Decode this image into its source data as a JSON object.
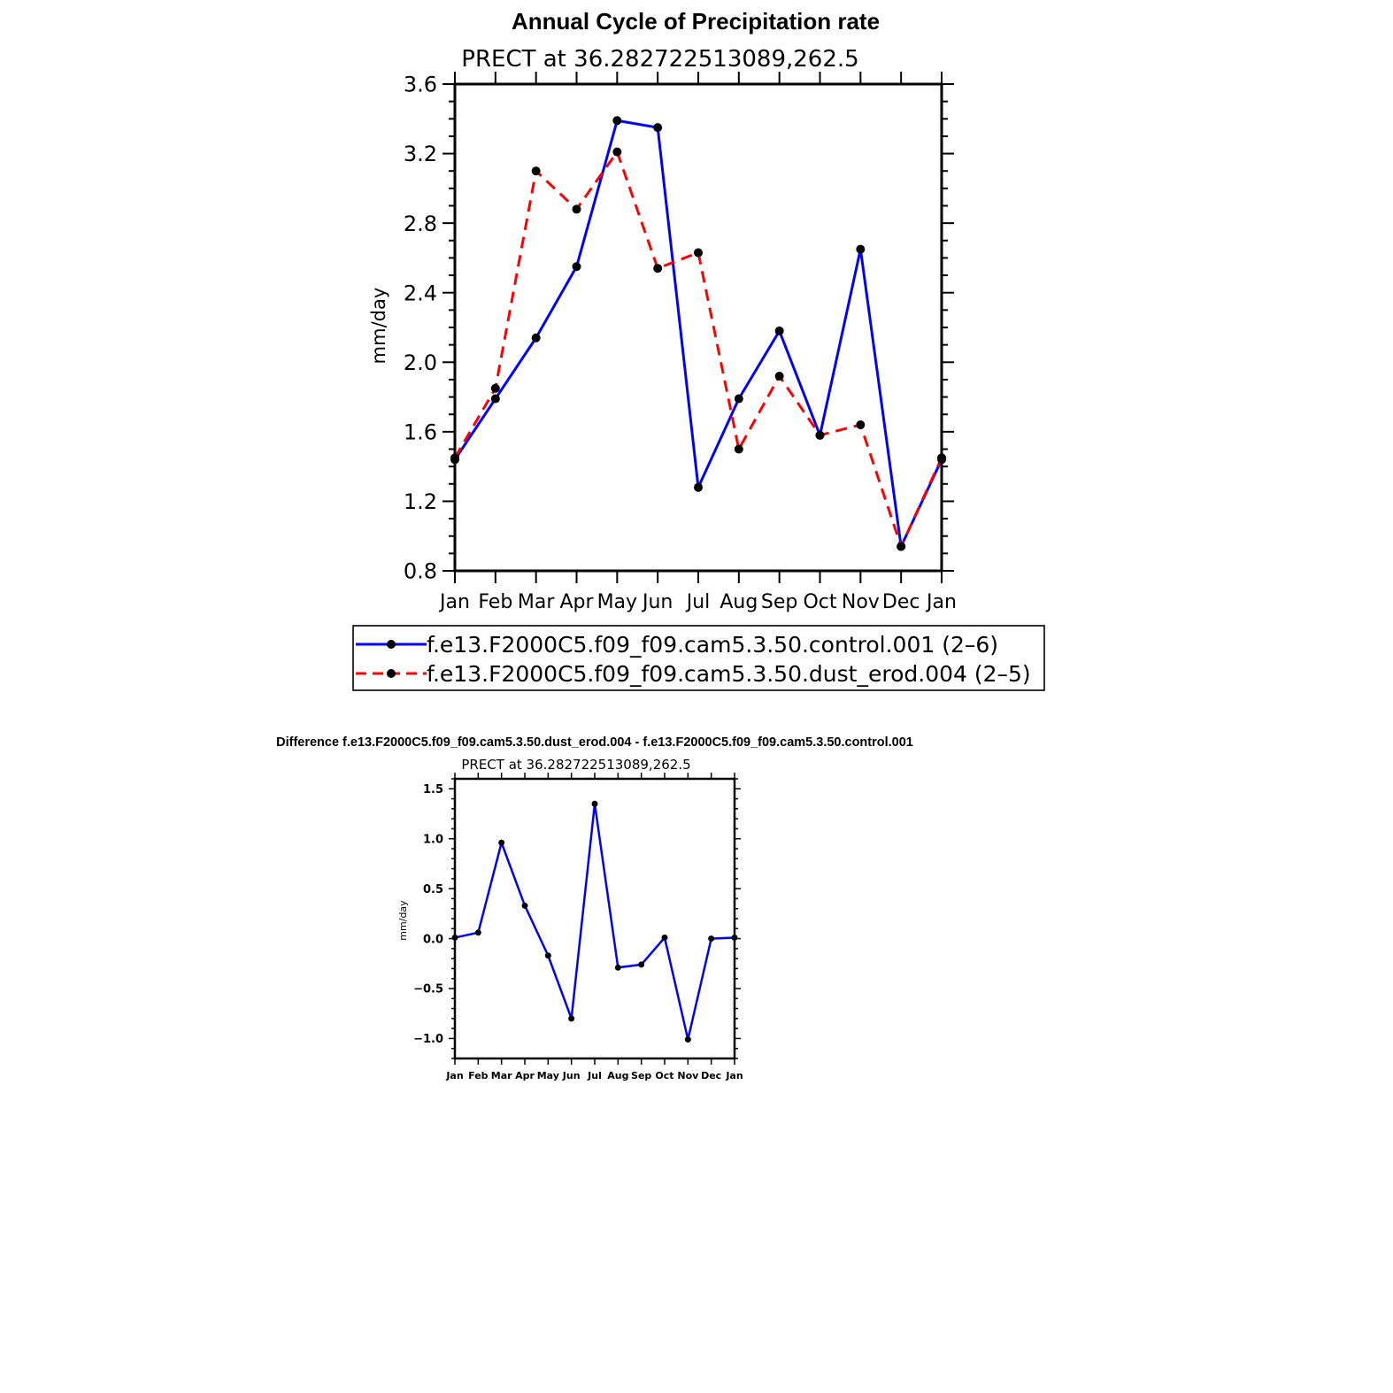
{
  "chart_data": [
    {
      "type": "line",
      "title": "Annual Cycle of Precipitation rate",
      "subtitle": "PRECT at 36.282722513089,262.5",
      "xlabel": "",
      "ylabel": "mm/day",
      "categories": [
        "Jan",
        "Feb",
        "Mar",
        "Apr",
        "May",
        "Jun",
        "Jul",
        "Aug",
        "Sep",
        "Oct",
        "Nov",
        "Dec",
        "Jan"
      ],
      "ylim": [
        0.8,
        3.6
      ],
      "yticks": [
        "0.8",
        "1.2",
        "1.6",
        "2.0",
        "2.4",
        "2.8",
        "3.2",
        "3.6"
      ],
      "ytick_values": [
        0.8,
        1.2,
        1.6,
        2.0,
        2.4,
        2.8,
        3.2,
        3.6
      ],
      "grid": false,
      "legend_position": "bottom",
      "series": [
        {
          "name": "f.e13.F2000C5.f09_f09.cam5.3.50.control.001 (2–6)",
          "color": "#0000ff",
          "dash": "solid",
          "values": [
            1.44,
            1.79,
            2.14,
            2.55,
            3.39,
            3.35,
            1.28,
            1.79,
            2.18,
            1.58,
            2.65,
            0.94,
            1.44
          ]
        },
        {
          "name": "f.e13.F2000C5.f09_f09.cam5.3.50.dust_erod.004 (2–5)",
          "color": "#ff0000",
          "dash": "dashed",
          "values": [
            1.45,
            1.85,
            3.1,
            2.88,
            3.21,
            2.54,
            2.63,
            1.5,
            1.92,
            1.58,
            1.64,
            0.94,
            1.45
          ]
        }
      ]
    },
    {
      "type": "line",
      "title": "Difference f.e13.F2000C5.f09_f09.cam5.3.50.dust_erod.004 - f.e13.F2000C5.f09_f09.cam5.3.50.control.001",
      "subtitle": "PRECT at 36.282722513089,262.5",
      "xlabel": "",
      "ylabel": "mm/day",
      "categories": [
        "Jan",
        "Feb",
        "Mar",
        "Apr",
        "May",
        "Jun",
        "Jul",
        "Aug",
        "Sep",
        "Oct",
        "Nov",
        "Dec",
        "Jan"
      ],
      "ylim": [
        -1.2,
        1.6
      ],
      "yticks": [
        "−1.0",
        "−0.5",
        "0.0",
        "0.5",
        "1.0",
        "1.5"
      ],
      "ytick_values": [
        -1.0,
        -0.5,
        0.0,
        0.5,
        1.0,
        1.5
      ],
      "grid": false,
      "series": [
        {
          "color": "#0000ff",
          "dash": "solid",
          "values": [
            0.01,
            0.06,
            0.96,
            0.33,
            -0.17,
            -0.8,
            1.35,
            -0.29,
            -0.26,
            0.01,
            -1.01,
            0.0,
            0.01
          ]
        }
      ]
    }
  ]
}
